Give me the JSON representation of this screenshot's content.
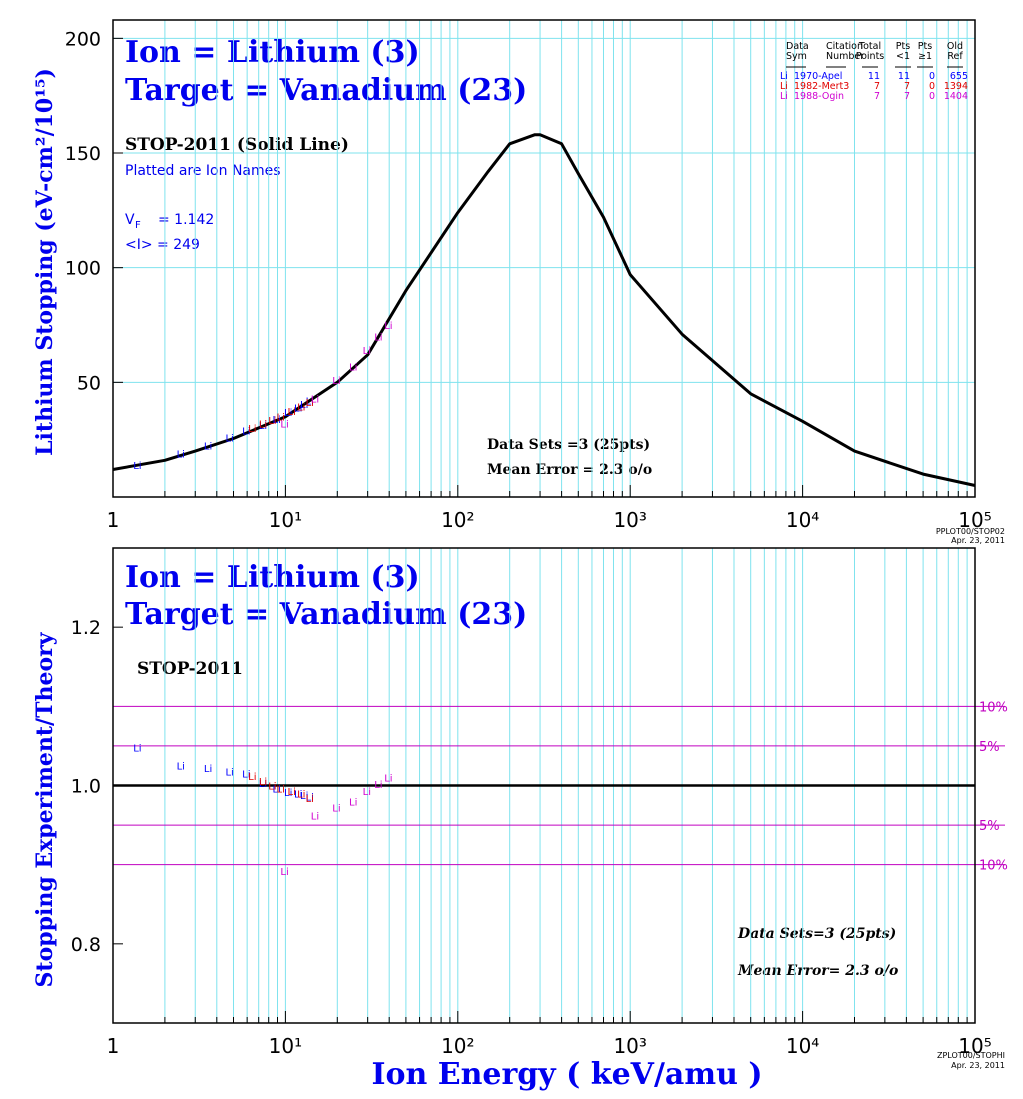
{
  "chart_data": [
    {
      "type": "scatter_line",
      "annotations": {
        "ion": "Ion = Lithium (3)",
        "target": "Target = Vanadium (23)",
        "curve_note": "STOP-2011 (Solid Line)",
        "plot_note": "Platted are Ion Names",
        "vf_symbol": "V",
        "vf_sub": "F",
        "vf_text": "= 1.142",
        "mean_i": "<I> = 249",
        "data_sets": "Data Sets =3 (25pts)",
        "mean_error": "Mean Error =  2.3 o/o",
        "footer": "PPLOT00/STOP02",
        "date": "Apr. 23, 2011"
      },
      "y_label": "Lithium Stopping (eV-cm²/10¹⁵)",
      "legend_headers": [
        [
          "Data",
          "Sym"
        ],
        [
          "Citation",
          "Number"
        ],
        [
          "Total",
          "Points"
        ],
        [
          "Pts",
          "<1"
        ],
        [
          "Pts",
          "≥1"
        ],
        [
          "Old",
          "Ref"
        ]
      ],
      "xlog": true,
      "xlim": [
        1,
        100000
      ],
      "xticks": [
        1,
        {
          "value": 10,
          "label": "10¹"
        },
        {
          "value": 100,
          "label": "10²"
        },
        {
          "value": 1000,
          "label": "10³"
        },
        {
          "value": 10000,
          "label": "10⁴"
        },
        {
          "value": 100000,
          "label": "10⁵"
        }
      ],
      "xminor": [
        2,
        3,
        4,
        5,
        6,
        7,
        8,
        9,
        20,
        30,
        40,
        50,
        60,
        70,
        80,
        90,
        200,
        300,
        400,
        500,
        600,
        700,
        800,
        900,
        2000,
        3000,
        4000,
        5000,
        6000,
        7000,
        8000,
        9000,
        20000,
        30000,
        40000,
        50000,
        60000,
        70000,
        80000,
        90000
      ],
      "ylim": [
        0,
        208
      ],
      "yticks": [
        50,
        100,
        150,
        200
      ],
      "ygrid": true,
      "line": {
        "color": "#000000",
        "x": [
          1,
          2,
          3,
          5,
          10,
          20,
          30,
          50,
          100,
          150,
          200,
          280,
          300,
          400,
          500,
          700,
          1000,
          2000,
          5000,
          10000,
          20000,
          50000,
          100000
        ],
        "values": [
          12,
          16,
          20,
          25.5,
          35,
          50,
          62,
          90,
          124,
          142,
          154,
          158,
          158,
          154,
          141,
          122,
          97,
          71,
          45,
          33,
          20,
          10,
          5
        ]
      },
      "series": [
        {
          "name": "1970-Apel",
          "symbol": "Li",
          "color": "#0000ff",
          "total_points": 11,
          "pts_lt1": 11,
          "pts_ge1": 0,
          "old_ref": 655,
          "x": [
            1.4,
            2.5,
            3.6,
            4.8,
            6,
            7.5,
            9,
            10.5,
            12,
            13,
            14
          ],
          "values": [
            14,
            19,
            22.5,
            26,
            29,
            31.5,
            34,
            37,
            39,
            40.5,
            42
          ]
        },
        {
          "name": "1982-Mert3",
          "symbol": "Li",
          "color": "#e00000",
          "total_points": 7,
          "pts_lt1": 7,
          "pts_ge1": 0,
          "old_ref": 1394,
          "x": [
            6.5,
            7.5,
            8.5,
            9.5,
            11,
            12.5,
            14
          ],
          "values": [
            30,
            32,
            33.5,
            35,
            37.5,
            39.5,
            41.5
          ]
        },
        {
          "name": "1988-Ogin",
          "symbol": "Li",
          "color": "#d000d0",
          "total_points": 7,
          "pts_lt1": 7,
          "pts_ge1": 0,
          "old_ref": 1404,
          "x": [
            10,
            15,
            20,
            25,
            30,
            35,
            40
          ],
          "values": [
            32,
            43,
            51,
            57,
            64,
            70,
            75
          ]
        }
      ]
    },
    {
      "type": "scatter",
      "annotations": {
        "ion": "Ion = Lithium (3)",
        "target": "Target = Vanadium (23)",
        "curve_note": "STOP-2011",
        "data_sets": "Data Sets=3 (25pts)",
        "mean_error": "Mean Error=  2.3 o/o",
        "footer": "ZPLOT00/STOPHI",
        "date": "Apr. 23, 2011"
      },
      "y_label": "Stopping  Experiment/Theory",
      "x_label": "Ion  Energy  ( keV/amu )",
      "xlog": true,
      "xlim": [
        1,
        100000
      ],
      "xticks": [
        1,
        {
          "value": 10,
          "label": "10¹"
        },
        {
          "value": 100,
          "label": "10²"
        },
        {
          "value": 1000,
          "label": "10³"
        },
        {
          "value": 10000,
          "label": "10⁴"
        },
        {
          "value": 100000,
          "label": "10⁵"
        }
      ],
      "xminor": [
        2,
        3,
        4,
        5,
        6,
        7,
        8,
        9,
        20,
        30,
        40,
        50,
        60,
        70,
        80,
        90,
        200,
        300,
        400,
        500,
        600,
        700,
        800,
        900,
        2000,
        3000,
        4000,
        5000,
        6000,
        7000,
        8000,
        9000,
        20000,
        30000,
        40000,
        50000,
        60000,
        70000,
        80000,
        90000
      ],
      "ylim": [
        0.7,
        1.3
      ],
      "yticks": [
        0.8,
        {
          "value": 1,
          "label": "1.0"
        },
        1.2
      ],
      "ygrid": false,
      "unity_line": 1,
      "reference_lines": [
        {
          "value": 1.1,
          "label": "10%"
        },
        {
          "value": 1.05,
          "label": "5%"
        },
        {
          "value": 0.95,
          "label": "5%"
        },
        {
          "value": 0.9,
          "label": "10%"
        }
      ],
      "reference_color": "#c000c0",
      "series": [
        {
          "symbol": "Li",
          "color": "#0000ff",
          "x": [
            1.4,
            2.5,
            3.6,
            4.8,
            6,
            7.5,
            9,
            10.5,
            12,
            13,
            14
          ],
          "values": [
            1.048,
            1.025,
            1.022,
            1.018,
            1.015,
            1.003,
            0.996,
            0.992,
            0.99,
            0.988,
            0.986
          ]
        },
        {
          "symbol": "Li",
          "color": "#e00000",
          "x": [
            6.5,
            7.5,
            8.5,
            9.5,
            11,
            12.5,
            14
          ],
          "values": [
            1.012,
            1.006,
            1.0,
            0.996,
            0.993,
            0.99,
            0.984
          ]
        },
        {
          "symbol": "Li",
          "color": "#d000d0",
          "x": [
            10,
            15,
            20,
            25,
            30,
            35,
            40
          ],
          "values": [
            0.892,
            0.962,
            0.972,
            0.98,
            0.993,
            1.002,
            1.01
          ]
        }
      ]
    }
  ]
}
